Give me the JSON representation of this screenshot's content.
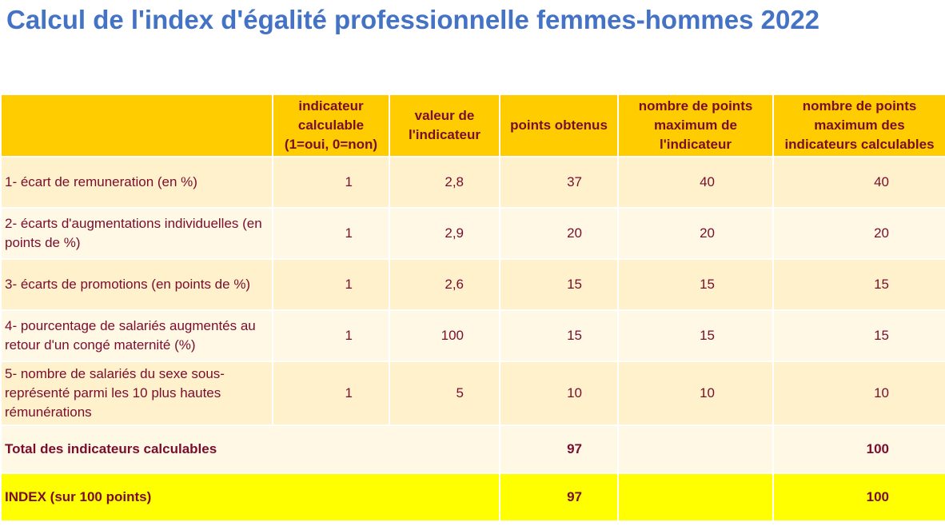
{
  "title": "Calcul de l'index d'égalité professionnelle femmes-hommes 2022",
  "columns": [
    "",
    "indicateur calculable (1=oui, 0=non)",
    "valeur de l'indicateur",
    "points obtenus",
    "nombre de points maximum de l'indicateur",
    "nombre de points maximum des indicateurs calculables"
  ],
  "rows": [
    {
      "label": "1- écart de remuneration (en %)",
      "calculable": "1",
      "valeur": "2,8",
      "points": "37",
      "max": "40",
      "max_calc": "40"
    },
    {
      "label": "2- écarts d'augmentations individuelles (en points de %)",
      "calculable": "1",
      "valeur": "2,9",
      "points": "20",
      "max": "20",
      "max_calc": "20"
    },
    {
      "label": "3- écarts de promotions (en points de %)",
      "calculable": "1",
      "valeur": "2,6",
      "points": "15",
      "max": "15",
      "max_calc": "15"
    },
    {
      "label": "4- pourcentage de salariés augmentés au retour d'un congé maternité (%)",
      "calculable": "1",
      "valeur": "100",
      "points": "15",
      "max": "15",
      "max_calc": "15"
    },
    {
      "label": "5- nombre de salariés du sexe sous-représenté parmi les 10 plus hautes rémunérations",
      "calculable": "1",
      "valeur": "5",
      "points": "10",
      "max": "10",
      "max_calc": "10"
    }
  ],
  "total": {
    "label": "Total des indicateurs calculables",
    "points": "97",
    "max_calc": "100"
  },
  "index": {
    "label": "INDEX (sur 100 points)",
    "points": "97",
    "max_calc": "100"
  },
  "colors": {
    "title": "#4472c4",
    "header_bg": "#ffcc00",
    "row_odd_bg": "#fff1cc",
    "row_even_bg": "#fff8e5",
    "index_bg": "#ffff00",
    "text": "#7a0c2e"
  }
}
